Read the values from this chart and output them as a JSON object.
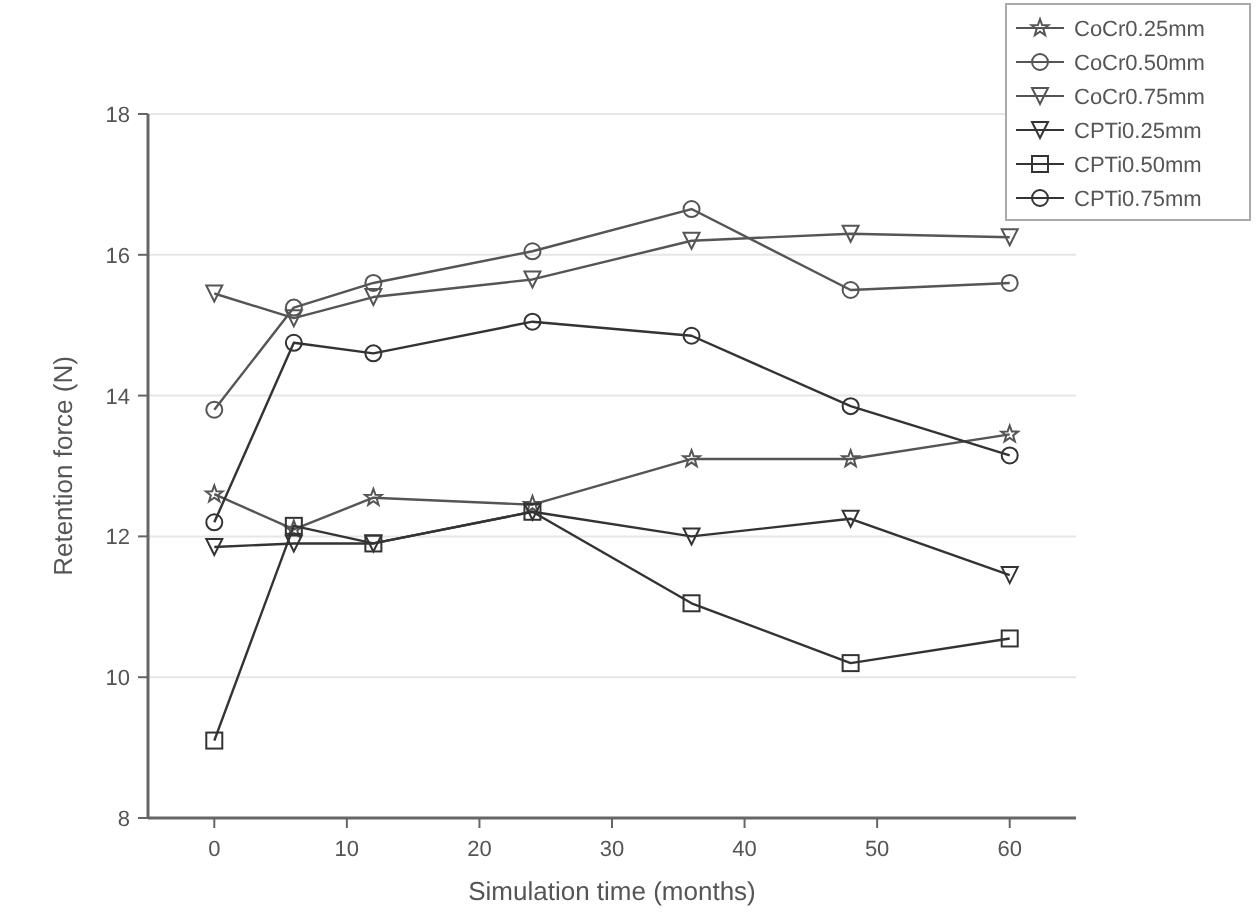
{
  "chart_data": {
    "type": "line",
    "xlabel": "Simulation time (months)",
    "ylabel": "Retention force (N)",
    "x": [
      0,
      6,
      12,
      24,
      36,
      48,
      60
    ],
    "xlim": [
      -5,
      65
    ],
    "xticks": [
      0,
      10,
      20,
      30,
      40,
      50,
      60
    ],
    "ylim": [
      8,
      18
    ],
    "yticks": [
      8,
      10,
      12,
      14,
      16,
      18
    ],
    "grid": "y",
    "legend": "top right",
    "line_style": "solid",
    "series": [
      {
        "name": "CoCr0.25mm",
        "color": "#555555",
        "marker": "star",
        "values": [
          12.6,
          12.1,
          12.55,
          12.45,
          13.1,
          13.1,
          13.45
        ]
      },
      {
        "name": "CoCr0.50mm",
        "color": "#555555",
        "marker": "circle",
        "values": [
          13.8,
          15.25,
          15.6,
          16.05,
          16.65,
          15.5,
          15.6
        ]
      },
      {
        "name": "CoCr0.75mm",
        "color": "#555555",
        "marker": "triangle",
        "values": [
          15.45,
          15.1,
          15.4,
          15.65,
          16.2,
          16.3,
          16.25
        ]
      },
      {
        "name": "CPTi0.25mm",
        "color": "#333333",
        "marker": "triangle",
        "values": [
          11.85,
          11.9,
          11.9,
          12.35,
          12.0,
          12.25,
          11.45
        ]
      },
      {
        "name": "CPTi0.50mm",
        "color": "#333333",
        "marker": "square",
        "values": [
          9.1,
          12.15,
          11.9,
          12.35,
          11.05,
          10.2,
          10.55
        ]
      },
      {
        "name": "CPTi0.75mm",
        "color": "#333333",
        "marker": "circle",
        "values": [
          12.2,
          14.75,
          14.6,
          15.05,
          14.85,
          13.85,
          13.15
        ]
      }
    ]
  }
}
